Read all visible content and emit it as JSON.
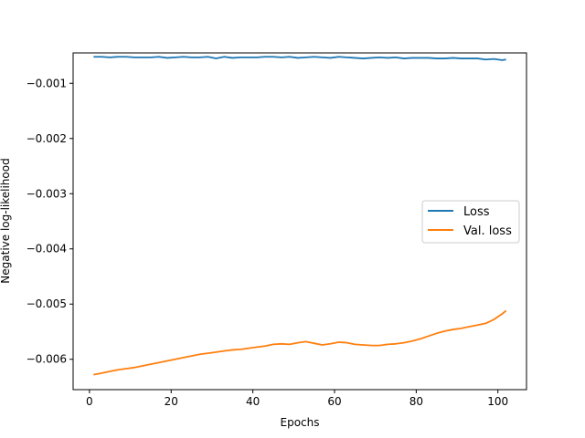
{
  "chart_data": {
    "type": "line",
    "title": "",
    "xlabel": "Epochs",
    "ylabel": "Negative log-likelihood",
    "xlim": [
      -4,
      107
    ],
    "ylim": [
      -0.00655,
      -0.00045
    ],
    "xticks": [
      0,
      20,
      40,
      60,
      80,
      100
    ],
    "yticks": [
      -0.001,
      -0.002,
      -0.003,
      -0.004,
      -0.005,
      -0.006
    ],
    "ytick_labels": [
      "−0.001",
      "−0.002",
      "−0.003",
      "−0.004",
      "−0.005",
      "−0.006"
    ],
    "grid": false,
    "legend_position": "center-right",
    "x": [
      1,
      3,
      5,
      7,
      9,
      11,
      13,
      15,
      17,
      19,
      21,
      23,
      25,
      27,
      29,
      31,
      33,
      35,
      37,
      39,
      41,
      43,
      45,
      47,
      49,
      51,
      53,
      55,
      57,
      59,
      61,
      63,
      65,
      67,
      69,
      71,
      73,
      75,
      77,
      79,
      81,
      83,
      85,
      87,
      89,
      91,
      93,
      95,
      97,
      99,
      101,
      102
    ],
    "series": [
      {
        "name": "Loss",
        "color": "#1f77b4",
        "values": [
          -0.00052,
          -0.00052,
          -0.00053,
          -0.00052,
          -0.00052,
          -0.00053,
          -0.00053,
          -0.00053,
          -0.00052,
          -0.00054,
          -0.00053,
          -0.00052,
          -0.00053,
          -0.00053,
          -0.00052,
          -0.00055,
          -0.00052,
          -0.00054,
          -0.00053,
          -0.00053,
          -0.00053,
          -0.00052,
          -0.00052,
          -0.00053,
          -0.00052,
          -0.00054,
          -0.00053,
          -0.00052,
          -0.00053,
          -0.00054,
          -0.00052,
          -0.00053,
          -0.00054,
          -0.00055,
          -0.00054,
          -0.00053,
          -0.00054,
          -0.00053,
          -0.00055,
          -0.00054,
          -0.00054,
          -0.00054,
          -0.00055,
          -0.00055,
          -0.00054,
          -0.00055,
          -0.00055,
          -0.00055,
          -0.00057,
          -0.00056,
          -0.00058,
          -0.00057
        ]
      },
      {
        "name": "Val. loss",
        "color": "#ff7f0e",
        "values": [
          -0.00628,
          -0.00625,
          -0.00622,
          -0.00619,
          -0.00617,
          -0.00615,
          -0.00612,
          -0.00609,
          -0.00606,
          -0.00603,
          -0.006,
          -0.00597,
          -0.00594,
          -0.00591,
          -0.00589,
          -0.00587,
          -0.00585,
          -0.00583,
          -0.00582,
          -0.0058,
          -0.00578,
          -0.00576,
          -0.00573,
          -0.00572,
          -0.00573,
          -0.0057,
          -0.00568,
          -0.00571,
          -0.00574,
          -0.00572,
          -0.00569,
          -0.0057,
          -0.00573,
          -0.00574,
          -0.00575,
          -0.00575,
          -0.00573,
          -0.00572,
          -0.0057,
          -0.00567,
          -0.00563,
          -0.00558,
          -0.00553,
          -0.00549,
          -0.00546,
          -0.00544,
          -0.00541,
          -0.00538,
          -0.00535,
          -0.00528,
          -0.00518,
          -0.00512
        ]
      }
    ]
  }
}
